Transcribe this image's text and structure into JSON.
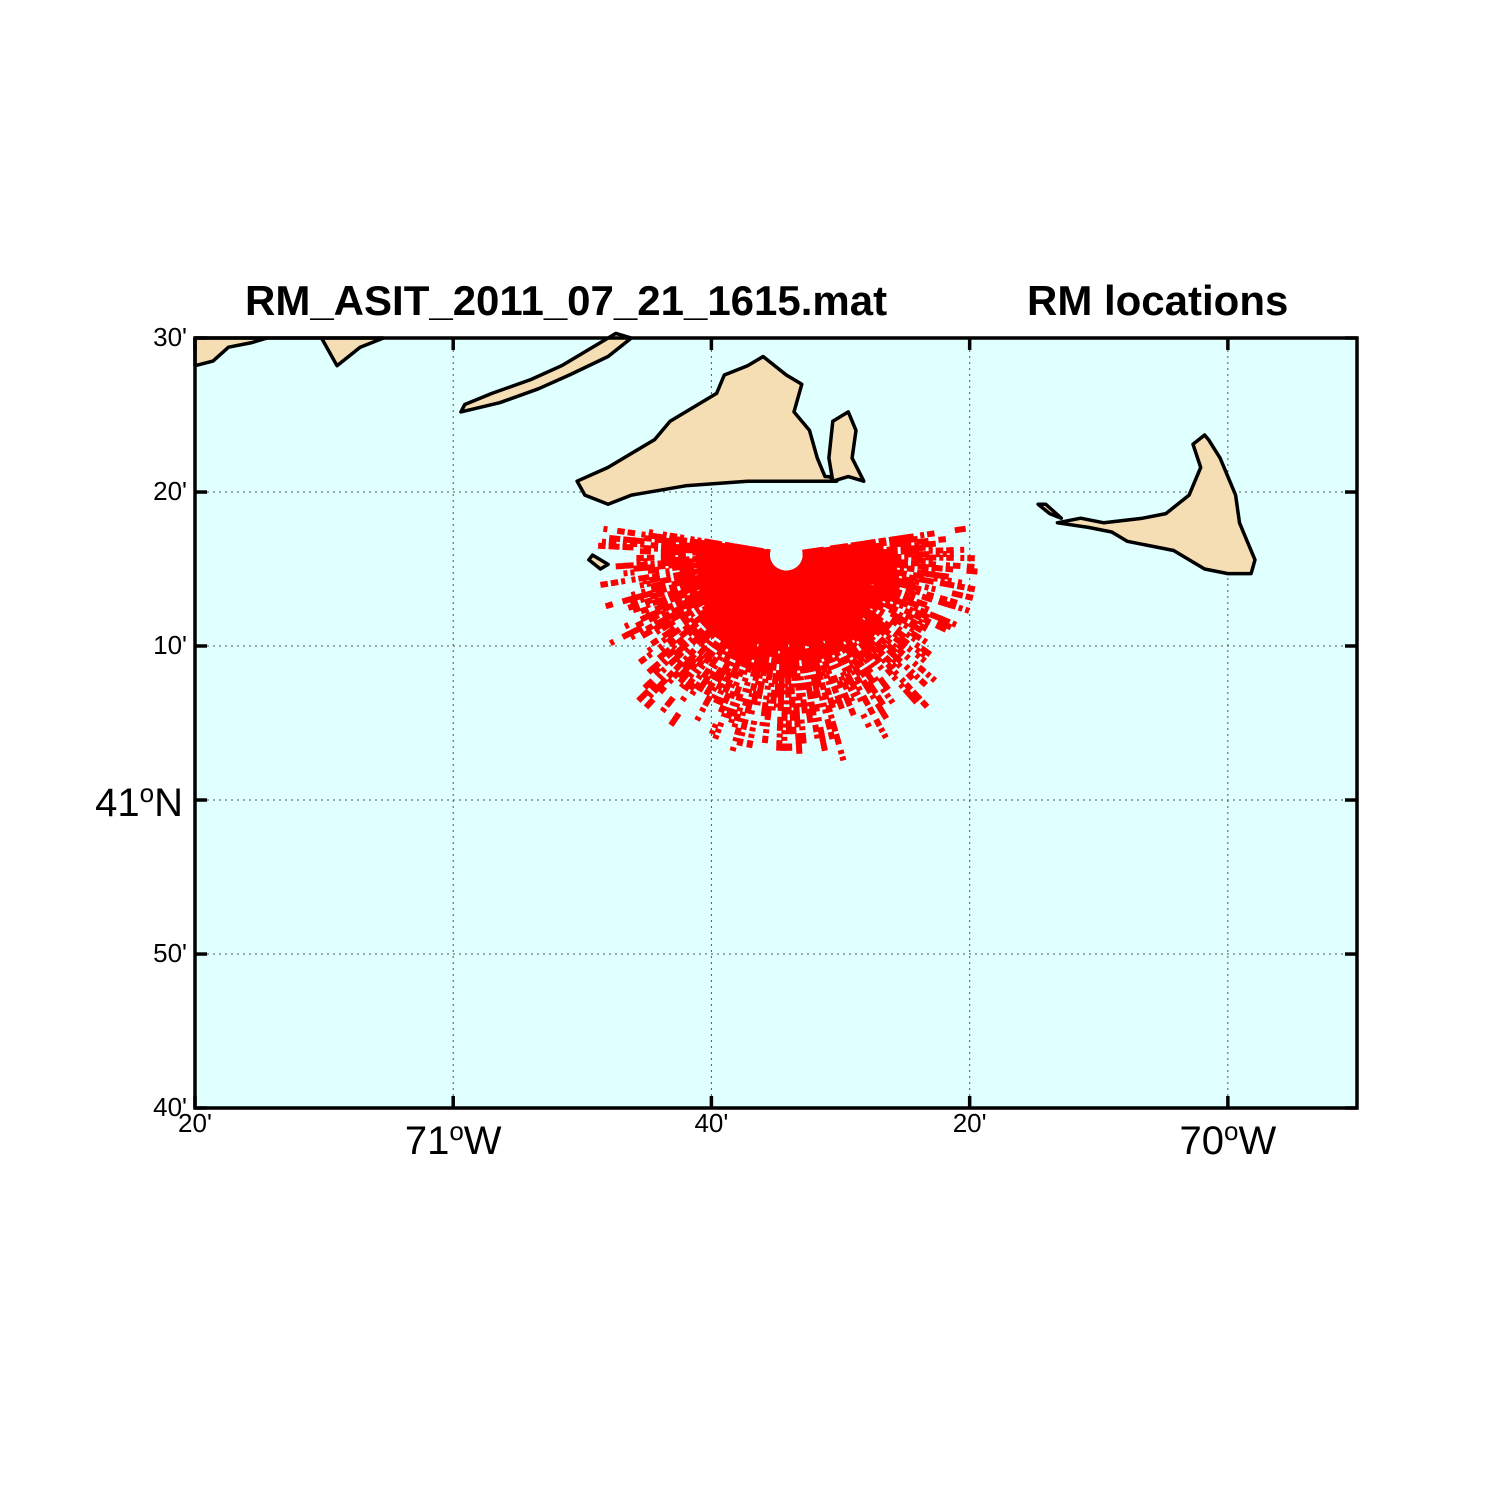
{
  "title": {
    "file": "RM_ASIT_2011_07_21_1615.mat",
    "subtitle": "RM locations"
  },
  "colors": {
    "ocean": "#e0ffff",
    "land": "#f5deb3",
    "coastline": "#000000",
    "points": "#ff0000"
  },
  "map": {
    "type": "map",
    "lon_range": [
      -71.3333,
      -69.8333
    ],
    "lat_range": [
      40.6667,
      41.5
    ],
    "grid": true,
    "lat_ticks": [
      {
        "value": 40.6667,
        "label": "40'"
      },
      {
        "value": 40.8333,
        "label": "50'"
      },
      {
        "value": 41.0,
        "label": "41",
        "major": true,
        "suffix": "N"
      },
      {
        "value": 41.1667,
        "label": "10'"
      },
      {
        "value": 41.3333,
        "label": "20'"
      },
      {
        "value": 41.5,
        "label": "30'"
      }
    ],
    "lon_ticks": [
      {
        "value": -71.3333,
        "label": "20'"
      },
      {
        "value": -71.0,
        "label": "71",
        "major": true,
        "suffix": "W"
      },
      {
        "value": -70.6667,
        "label": "40'"
      },
      {
        "value": -70.3333,
        "label": "20'"
      },
      {
        "value": -70.0,
        "label": "70",
        "major": true,
        "suffix": "W"
      }
    ],
    "degree_symbol": "o",
    "radar_site": {
      "lon": -70.57,
      "lat": 41.33
    },
    "coverage": {
      "min_range_deg_lat": 0.02,
      "max_range_deg_lat": 0.22,
      "arc_start_deg": 170,
      "arc_end_deg": 370
    },
    "landmasses": [
      {
        "name": "marthas-vineyard",
        "coords": [
          [
            -70.84,
            41.345
          ],
          [
            -70.8,
            41.36
          ],
          [
            -70.74,
            41.39
          ],
          [
            -70.72,
            41.41
          ],
          [
            -70.66,
            41.44
          ],
          [
            -70.65,
            41.46
          ],
          [
            -70.62,
            41.47
          ],
          [
            -70.6,
            41.48
          ],
          [
            -70.57,
            41.46
          ],
          [
            -70.55,
            41.45
          ],
          [
            -70.56,
            41.42
          ],
          [
            -70.54,
            41.4
          ],
          [
            -70.53,
            41.37
          ],
          [
            -70.52,
            41.35
          ],
          [
            -70.515,
            41.35
          ],
          [
            -70.505,
            41.345
          ],
          [
            -70.62,
            41.345
          ],
          [
            -70.7,
            41.34
          ],
          [
            -70.77,
            41.33
          ],
          [
            -70.8,
            41.32
          ],
          [
            -70.83,
            41.33
          ]
        ]
      },
      {
        "name": "chappaquiddick",
        "coords": [
          [
            -70.51,
            41.345
          ],
          [
            -70.49,
            41.35
          ],
          [
            -70.47,
            41.345
          ],
          [
            -70.485,
            41.37
          ],
          [
            -70.48,
            41.4
          ],
          [
            -70.49,
            41.42
          ],
          [
            -70.51,
            41.41
          ],
          [
            -70.515,
            41.37
          ]
        ]
      },
      {
        "name": "nantucket",
        "coords": [
          [
            -70.22,
            41.3
          ],
          [
            -70.18,
            41.295
          ],
          [
            -70.15,
            41.29
          ],
          [
            -70.13,
            41.28
          ],
          [
            -70.1,
            41.275
          ],
          [
            -70.07,
            41.27
          ],
          [
            -70.05,
            41.26
          ],
          [
            -70.03,
            41.25
          ],
          [
            -70.0,
            41.245
          ],
          [
            -69.97,
            41.245
          ],
          [
            -69.965,
            41.26
          ],
          [
            -69.975,
            41.28
          ],
          [
            -69.985,
            41.3
          ],
          [
            -69.99,
            41.33
          ],
          [
            -70.01,
            41.37
          ],
          [
            -70.025,
            41.39
          ],
          [
            -70.03,
            41.395
          ],
          [
            -70.045,
            41.385
          ],
          [
            -70.035,
            41.36
          ],
          [
            -70.05,
            41.33
          ],
          [
            -70.08,
            41.31
          ],
          [
            -70.11,
            41.305
          ],
          [
            -70.16,
            41.3
          ],
          [
            -70.19,
            41.305
          ]
        ]
      },
      {
        "name": "tuckernuck",
        "coords": [
          [
            -70.245,
            41.32
          ],
          [
            -70.23,
            41.31
          ],
          [
            -70.215,
            41.305
          ],
          [
            -70.235,
            41.32
          ]
        ]
      },
      {
        "name": "noman-land",
        "coords": [
          [
            -70.825,
            41.26
          ],
          [
            -70.81,
            41.25
          ],
          [
            -70.8,
            41.255
          ],
          [
            -70.82,
            41.265
          ]
        ]
      },
      {
        "name": "elizabeth-islands",
        "coords": [
          [
            -70.99,
            41.42
          ],
          [
            -70.94,
            41.43
          ],
          [
            -70.89,
            41.445
          ],
          [
            -70.85,
            41.46
          ],
          [
            -70.8,
            41.48
          ],
          [
            -70.77,
            41.5
          ],
          [
            -70.79,
            41.505
          ],
          [
            -70.82,
            41.49
          ],
          [
            -70.86,
            41.47
          ],
          [
            -70.9,
            41.455
          ],
          [
            -70.95,
            41.44
          ],
          [
            -70.985,
            41.428
          ]
        ]
      },
      {
        "name": "mainland",
        "coords": [
          [
            -71.3333,
            41.5
          ],
          [
            -71.3333,
            41.47
          ],
          [
            -71.31,
            41.475
          ],
          [
            -71.29,
            41.49
          ],
          [
            -71.26,
            41.495
          ],
          [
            -71.24,
            41.5
          ],
          [
            -71.17,
            41.5
          ],
          [
            -71.15,
            41.47
          ],
          [
            -71.12,
            41.49
          ],
          [
            -71.09,
            41.5
          ]
        ]
      }
    ]
  }
}
